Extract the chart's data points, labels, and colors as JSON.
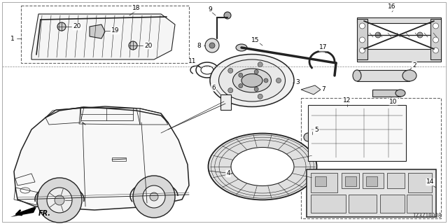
{
  "background_color": "#ffffff",
  "diagram_code": "TZ3Z10008",
  "lc": "#222222",
  "lw": 0.8,
  "fig_w": 6.4,
  "fig_h": 3.2,
  "dpi": 100,
  "xlim": [
    0,
    640
  ],
  "ylim": [
    0,
    320
  ],
  "label_fontsize": 6.5,
  "code_fontsize": 5.5
}
